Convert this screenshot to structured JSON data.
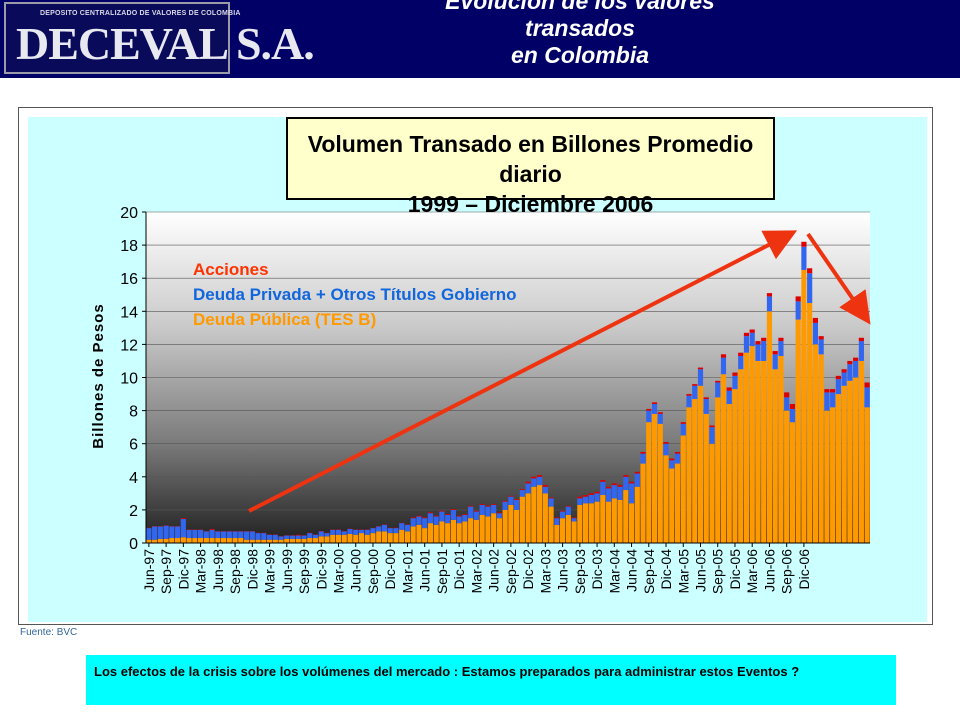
{
  "header": {
    "logo_subtitle": "DEPOSITO CENTRALIZADO DE VALORES DE COLOMBIA",
    "logo_name": "DECEVAL S.A.",
    "title": "Evolución de los valores\ntransados\nen Colombia"
  },
  "colors": {
    "header_bg": "#000066",
    "chart_bg": "#ccffff",
    "acciones": "#dd0000",
    "deuda_privada": "#3366ee",
    "deuda_publica": "#ff9900",
    "trend_arrow": "#ee3311",
    "legend_acciones": "#ff3300",
    "legend_privada": "#1166dd",
    "legend_publica": "#ff9900"
  },
  "footer": {
    "source": "Fuente:   BVC",
    "note": "Los efectos de la crisis sobre los volúmenes del mercado :  Estamos preparados para administrar estos Eventos ?"
  },
  "chart_data": {
    "type": "bar",
    "stacked": true,
    "title": "Volumen Transado en Billones  Promedio diario\n1999 – Diciembre 2006",
    "ylabel": "Billones de Pesos",
    "ylim": [
      0,
      20
    ],
    "yticks": [
      "0",
      "2",
      "4",
      "6",
      "8",
      "10",
      "12",
      "14",
      "16",
      "18",
      "20"
    ],
    "grid": true,
    "legend_position": "top-left",
    "x_tick_labels": [
      "Jun-97",
      "Sep-97",
      "Dic-97",
      "Mar-98",
      "Jun-98",
      "Sep-98",
      "Dic-98",
      "Mar-99",
      "Jun-99",
      "Sep-99",
      "Dic-99",
      "Mar-00",
      "Jun-00",
      "Sep-00",
      "Dic-00",
      "Mar-01",
      "Jun-01",
      "Sep-01",
      "Dic-01",
      "Mar-02",
      "Jun-02",
      "Sep-02",
      "Dic-02",
      "Mar-03",
      "Jun-03",
      "Sep-03",
      "Dic-03",
      "Mar-04",
      "Jun-04",
      "Sep-04",
      "Dic-04",
      "Mar-05",
      "Jun-05",
      "Sep-05",
      "Dic-05",
      "Mar-06",
      "Jun-06",
      "Sep-06",
      "Dic-06"
    ],
    "series": [
      {
        "name": "Deuda Pública (TES B)",
        "values": [
          0.2,
          0.2,
          0.25,
          0.25,
          0.3,
          0.3,
          0.35,
          0.3,
          0.3,
          0.3,
          0.3,
          0.3,
          0.3,
          0.3,
          0.3,
          0.3,
          0.3,
          0.2,
          0.2,
          0.2,
          0.2,
          0.2,
          0.2,
          0.2,
          0.25,
          0.25,
          0.25,
          0.25,
          0.3,
          0.3,
          0.4,
          0.4,
          0.5,
          0.5,
          0.5,
          0.55,
          0.5,
          0.6,
          0.5,
          0.6,
          0.7,
          0.7,
          0.6,
          0.6,
          0.8,
          0.7,
          1.0,
          1.1,
          0.9,
          1.2,
          1.1,
          1.3,
          1.2,
          1.4,
          1.2,
          1.3,
          1.5,
          1.4,
          1.7,
          1.6,
          1.8,
          1.5,
          2.0,
          2.3,
          2.0,
          2.8,
          3.0,
          3.4,
          3.5,
          3.0,
          2.2,
          1.1,
          1.5,
          1.7,
          1.3,
          2.3,
          2.4,
          2.4,
          2.5,
          2.9,
          2.5,
          2.7,
          2.6,
          3.2,
          2.4,
          3.4,
          4.8,
          7.3,
          7.8,
          7.2,
          5.3,
          4.5,
          4.8,
          6.5,
          8.2,
          8.7,
          9.5,
          7.8,
          6.0,
          8.8,
          10.2,
          8.4,
          9.3,
          10.5,
          11.5,
          11.9,
          11.0,
          11.0,
          14.0,
          10.5,
          11.3,
          8.0,
          7.3,
          13.5,
          16.5,
          14.5,
          12.0,
          11.4,
          8.0,
          8.2,
          9.0,
          9.5,
          9.8,
          10.0,
          11.0,
          8.2
        ],
        "color": "#ff9900"
      },
      {
        "name": "Deuda Privada + Otros Títulos Gobierno",
        "values": [
          0.7,
          0.8,
          0.75,
          0.8,
          0.7,
          0.7,
          1.1,
          0.5,
          0.5,
          0.5,
          0.4,
          0.5,
          0.4,
          0.4,
          0.4,
          0.4,
          0.4,
          0.5,
          0.5,
          0.4,
          0.4,
          0.3,
          0.3,
          0.2,
          0.2,
          0.2,
          0.2,
          0.2,
          0.3,
          0.2,
          0.3,
          0.2,
          0.3,
          0.3,
          0.2,
          0.3,
          0.3,
          0.2,
          0.3,
          0.3,
          0.3,
          0.4,
          0.3,
          0.3,
          0.4,
          0.4,
          0.5,
          0.5,
          0.6,
          0.6,
          0.5,
          0.6,
          0.5,
          0.6,
          0.4,
          0.4,
          0.7,
          0.5,
          0.6,
          0.6,
          0.5,
          0.3,
          0.5,
          0.5,
          0.6,
          0.4,
          0.6,
          0.5,
          0.5,
          0.4,
          0.5,
          0.4,
          0.4,
          0.5,
          0.2,
          0.4,
          0.4,
          0.5,
          0.5,
          0.8,
          0.8,
          0.8,
          0.8,
          0.8,
          1.2,
          0.8,
          0.6,
          0.7,
          0.6,
          0.6,
          0.7,
          0.5,
          0.6,
          0.7,
          0.7,
          0.8,
          1.0,
          0.9,
          1.0,
          0.9,
          1.0,
          0.8,
          0.8,
          0.8,
          1.0,
          0.8,
          1.0,
          1.2,
          0.9,
          0.9,
          0.9,
          0.8,
          0.8,
          1.1,
          1.4,
          1.8,
          1.3,
          0.9,
          1.1,
          0.9,
          0.9,
          0.8,
          1.0,
          1.0,
          1.2,
          1.2
        ],
        "color": "#3366ee"
      },
      {
        "name": "Acciones",
        "values": [
          0.02,
          0.02,
          0.02,
          0.02,
          0.02,
          0.02,
          0.05,
          0.02,
          0.02,
          0.02,
          0.02,
          0.05,
          0.02,
          0.02,
          0.02,
          0.02,
          0.02,
          0.02,
          0.02,
          0.02,
          0.02,
          0.02,
          0.02,
          0.02,
          0.02,
          0.02,
          0.05,
          0.02,
          0.02,
          0.02,
          0.02,
          0.02,
          0.02,
          0.02,
          0.02,
          0.02,
          0.02,
          0.02,
          0.02,
          0.02,
          0.02,
          0.02,
          0.02,
          0.02,
          0.02,
          0.02,
          0.05,
          0.05,
          0.05,
          0.05,
          0.05,
          0.05,
          0.05,
          0.05,
          0.05,
          0.05,
          0.05,
          0.05,
          0.05,
          0.05,
          0.05,
          0.05,
          0.05,
          0.05,
          0.05,
          0.05,
          0.1,
          0.1,
          0.1,
          0.1,
          0.05,
          0.05,
          0.05,
          0.05,
          0.05,
          0.1,
          0.1,
          0.1,
          0.1,
          0.1,
          0.1,
          0.1,
          0.1,
          0.1,
          0.1,
          0.1,
          0.1,
          0.1,
          0.1,
          0.1,
          0.1,
          0.1,
          0.1,
          0.1,
          0.1,
          0.1,
          0.1,
          0.1,
          0.1,
          0.1,
          0.2,
          0.2,
          0.2,
          0.2,
          0.2,
          0.2,
          0.2,
          0.2,
          0.2,
          0.2,
          0.2,
          0.3,
          0.3,
          0.3,
          0.3,
          0.3,
          0.3,
          0.2,
          0.2,
          0.2,
          0.2,
          0.2,
          0.2,
          0.2,
          0.2,
          0.3
        ],
        "color": "#dd0000"
      }
    ]
  }
}
